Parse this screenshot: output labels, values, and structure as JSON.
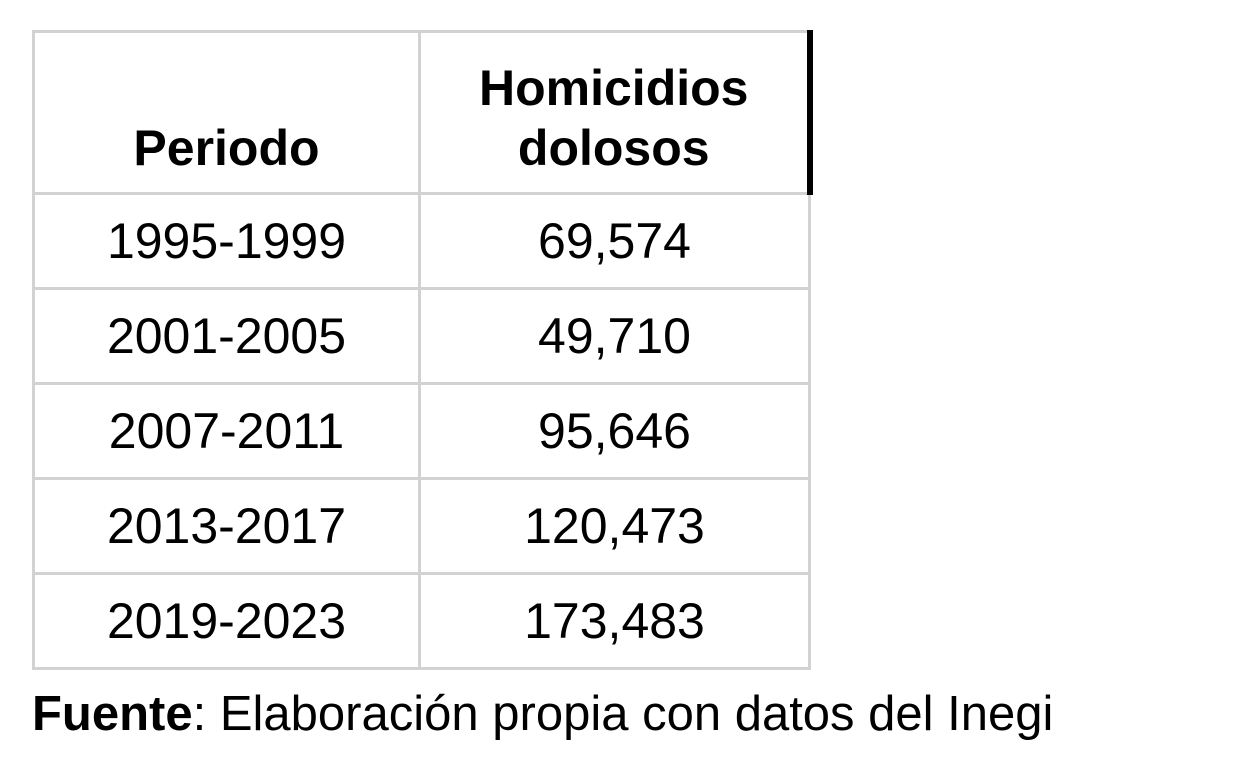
{
  "colors": {
    "background": "#ffffff",
    "border": "#d2d2d2",
    "header_accent_bar": "#000000",
    "text": "#000000"
  },
  "table": {
    "headers": [
      "Periodo",
      "Homicidios dolosos"
    ],
    "rows": [
      [
        "1995-1999",
        "69,574"
      ],
      [
        "2001-2005",
        "49,710"
      ],
      [
        "2007-2011",
        "95,646"
      ],
      [
        "2013-2017",
        "120,473"
      ],
      [
        "2019-2023",
        "173,483"
      ]
    ]
  },
  "source_note": {
    "label": "Fuente",
    "text": ": Elaboración propia con datos del Inegi"
  },
  "chart_data": {
    "type": "table",
    "columns": [
      "Periodo",
      "Homicidios dolosos"
    ],
    "categories": [
      "1995-1999",
      "2001-2005",
      "2007-2011",
      "2013-2017",
      "2019-2023"
    ],
    "values": [
      69574,
      49710,
      95646,
      120473,
      173483
    ],
    "title": "",
    "source": "Fuente: Elaboración propia con datos del Inegi"
  }
}
